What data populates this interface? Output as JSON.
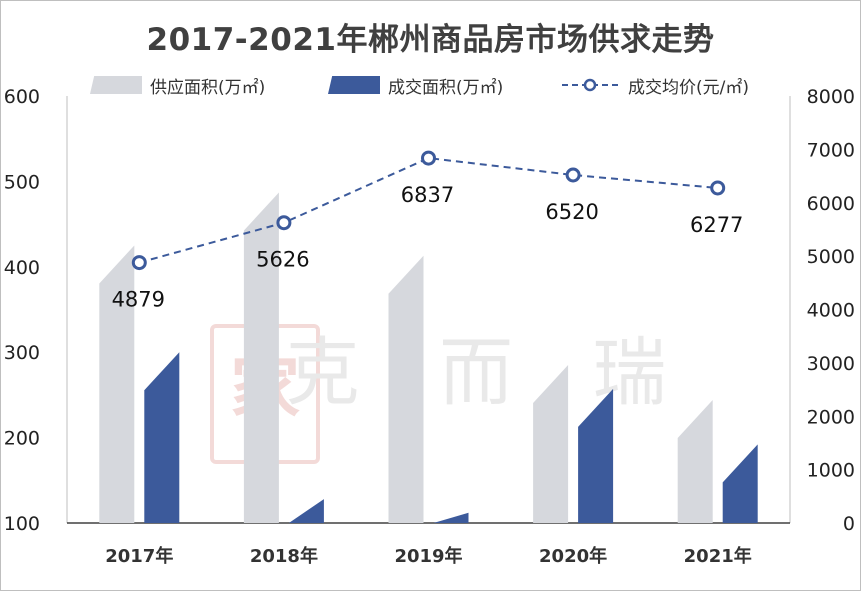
{
  "title": "2017-2021年郴州商品房市场供求走势",
  "legend": {
    "supply": "供应面积(万㎡)",
    "deal": "成交面积(万㎡)",
    "price": "成交均价(元/㎡)"
  },
  "watermark": "克 而 瑞",
  "colors": {
    "supply": "#d6d8dd",
    "deal": "#3c5a9b",
    "price": "#3c5a9b"
  },
  "chart_data": {
    "type": "bar",
    "categories": [
      "2017年",
      "2018年",
      "2019年",
      "2020年",
      "2021年"
    ],
    "series": [
      {
        "name": "供应面积(万㎡)",
        "axis": "left",
        "values": [
          425,
          487,
          413,
          285,
          244
        ]
      },
      {
        "name": "成交面积(万㎡)",
        "axis": "left",
        "values": [
          300,
          128,
          112,
          257,
          192
        ]
      },
      {
        "name": "成交均价(元/㎡)",
        "axis": "right",
        "type": "line",
        "style": "dashed",
        "markers": "circle",
        "values": [
          4879,
          5626,
          6837,
          6520,
          6277
        ]
      }
    ],
    "y_left": {
      "lim": [
        100,
        600
      ],
      "ticks": [
        100,
        200,
        300,
        400,
        500,
        600
      ]
    },
    "y_right": {
      "lim": [
        0,
        8000
      ],
      "ticks": [
        0,
        1000,
        2000,
        3000,
        4000,
        5000,
        6000,
        7000,
        8000
      ]
    },
    "legend_position": "top",
    "grid": false
  }
}
